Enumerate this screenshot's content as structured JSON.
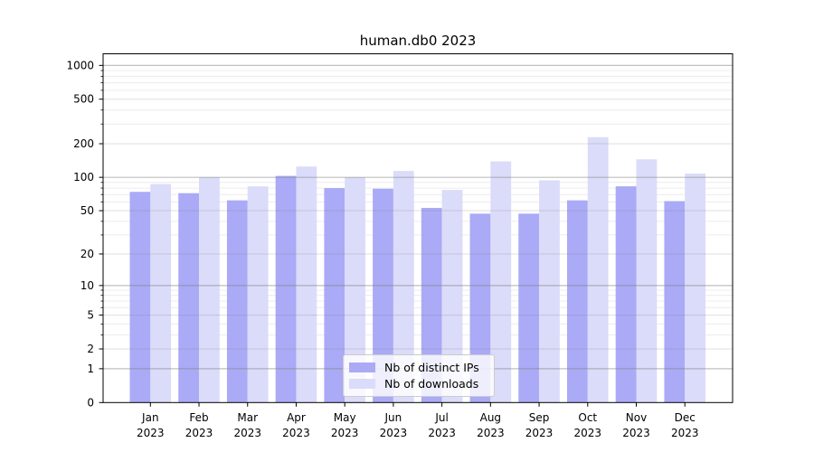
{
  "title": "human.db0 2023",
  "chart_data": {
    "type": "bar",
    "y_scale": "log1p",
    "title": "human.db0 2023",
    "xlabel": "",
    "ylabel": "",
    "categories": [
      "Jan",
      "Feb",
      "Mar",
      "Apr",
      "May",
      "Jun",
      "Jul",
      "Aug",
      "Sep",
      "Oct",
      "Nov",
      "Dec"
    ],
    "year_label": "2023",
    "series": [
      {
        "name": "Nb of distinct IPs",
        "color": "#aaaaf6",
        "values": [
          74,
          72,
          62,
          103,
          80,
          79,
          53,
          47,
          47,
          62,
          83,
          61
        ]
      },
      {
        "name": "Nb of downloads",
        "color": "#dbdbfa",
        "values": [
          87,
          100,
          83,
          125,
          100,
          114,
          77,
          139,
          94,
          229,
          145,
          108
        ]
      }
    ],
    "y_ticks": [
      0,
      1,
      2,
      5,
      10,
      20,
      50,
      100,
      200,
      500,
      1000
    ],
    "y_major_grid_values": [
      1,
      10,
      100,
      1000
    ],
    "y_labeled_minor_values": [
      2,
      5,
      20,
      50,
      200,
      500
    ],
    "y_minor_grid_values": [
      3,
      4,
      6,
      7,
      8,
      9,
      30,
      40,
      60,
      70,
      80,
      90,
      300,
      400,
      600,
      700,
      800,
      900
    ],
    "ylim": [
      0,
      1270
    ],
    "grid": true,
    "legend_position": "lower center"
  },
  "colors": {
    "background": "#ffffff",
    "axis": "#000000",
    "text": "#000000",
    "grid_minor": "#ececec",
    "grid_labeled": "rgba(128,128,128,0.25)",
    "grid_major": "rgba(128,128,128,0.5)",
    "legend_border": "#cccccc",
    "legend_background": "rgba(255,255,255,0.8)"
  }
}
